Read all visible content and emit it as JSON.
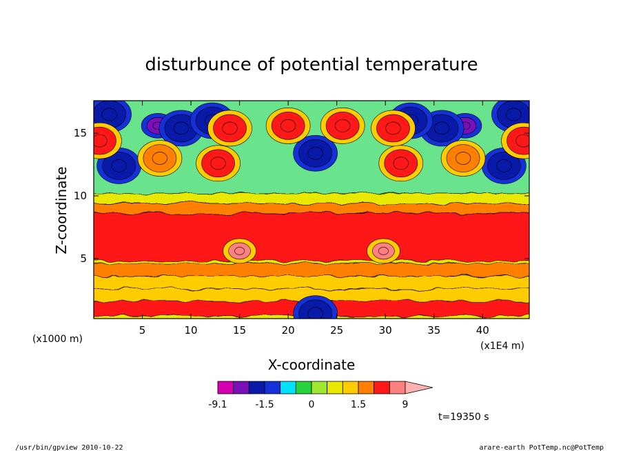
{
  "chart_data": {
    "type": "heatmap",
    "title": "disturbunce of potential temperature",
    "xlabel": "X-coordinate",
    "ylabel": "Z-coordinate",
    "x_unit": "(x1E4 m)",
    "y_unit": "(x1000 m)",
    "xlim": [
      0,
      44.8
    ],
    "ylim": [
      0.2,
      17.6
    ],
    "x_ticks": [
      5,
      10,
      15,
      20,
      25,
      30,
      35,
      40
    ],
    "y_ticks": [
      5,
      10,
      15
    ],
    "x_tick_labels": [
      "5",
      "10",
      "15",
      "20",
      "25",
      "30",
      "35",
      "40"
    ],
    "y_tick_labels": [
      "5",
      "10",
      "15"
    ],
    "palette": [
      "#d600b0",
      "#7a10b8",
      "#0a1aa8",
      "#1430d8",
      "#00e0ff",
      "#28d23c",
      "#a0e830",
      "#e8e800",
      "#ffcc00",
      "#ff7f00",
      "#ff1818",
      "#ff8080",
      "#ffb0b0"
    ],
    "colorbar": {
      "levels": [
        -9.1,
        -6.3,
        -3.9,
        -1.5,
        -1.0,
        -0.5,
        0.0,
        0.5,
        1.0,
        1.5,
        3.9,
        6.3,
        9.0
      ],
      "tick_labels": [
        {
          "value": -9.1,
          "text": "-9.1"
        },
        {
          "value": -1.5,
          "text": "-1.5"
        },
        {
          "value": 0.0,
          "text": "0"
        },
        {
          "value": 1.5,
          "text": "1.5"
        },
        {
          "value": 9.0,
          "text": "9"
        }
      ],
      "extend": "max"
    },
    "fields": {
      "layer_low": {
        "z": [
          0.4,
          1.6,
          2.6,
          3.6,
          4.6
        ],
        "value": [
          3.9,
          1.0,
          1.2,
          1.5,
          3.9
        ]
      },
      "layer_mid": {
        "z": [
          4.8,
          8.6
        ],
        "value": 3.9
      },
      "layer_high": {
        "z": [
          8.6,
          9.4,
          10.2
        ],
        "value": [
          1.5,
          0.5,
          0.0
        ]
      },
      "cold_cores": [
        {
          "x": 22.8,
          "z": 13.4,
          "value": -3.9
        },
        {
          "x": 6.6,
          "z": 15.6,
          "value": -6.3
        },
        {
          "x": 38.2,
          "z": 15.6,
          "value": -6.3
        },
        {
          "x": 2.6,
          "z": 12.4,
          "value": -3.9
        },
        {
          "x": 42.2,
          "z": 12.4,
          "value": -3.9
        },
        {
          "x": 9.0,
          "z": 15.4,
          "value": -3.9
        },
        {
          "x": 35.8,
          "z": 15.4,
          "value": -3.9
        },
        {
          "x": 1.6,
          "z": 16.5,
          "value": -3.9
        },
        {
          "x": 43.2,
          "z": 16.5,
          "value": -3.9
        },
        {
          "x": 12.2,
          "z": 16.0,
          "value": -3.9
        },
        {
          "x": 32.6,
          "z": 16.0,
          "value": -3.9
        },
        {
          "x": 22.8,
          "z": 0.6,
          "value": -3.9
        }
      ],
      "warm_cores": [
        {
          "x": 14.0,
          "z": 15.4,
          "value": 3.9
        },
        {
          "x": 20.0,
          "z": 15.6,
          "value": 3.9
        },
        {
          "x": 25.6,
          "z": 15.6,
          "value": 3.9
        },
        {
          "x": 30.8,
          "z": 15.4,
          "value": 3.9
        },
        {
          "x": 12.8,
          "z": 12.6,
          "value": 3.9
        },
        {
          "x": 31.6,
          "z": 12.6,
          "value": 3.9
        },
        {
          "x": 6.8,
          "z": 13.0,
          "value": 1.5
        },
        {
          "x": 38.0,
          "z": 13.0,
          "value": 1.5
        },
        {
          "x": 0.6,
          "z": 14.4,
          "value": 3.9
        },
        {
          "x": 44.2,
          "z": 14.4,
          "value": 3.9
        },
        {
          "x": 15.0,
          "z": 5.6,
          "value": 6.3
        },
        {
          "x": 29.8,
          "z": 5.6,
          "value": 6.3
        }
      ]
    }
  },
  "annotations": {
    "time": "t=19350 s",
    "program": "/usr/bin/gpview   2010-10-22",
    "source": "arare-earth_PotTemp.nc@PotTemp"
  }
}
